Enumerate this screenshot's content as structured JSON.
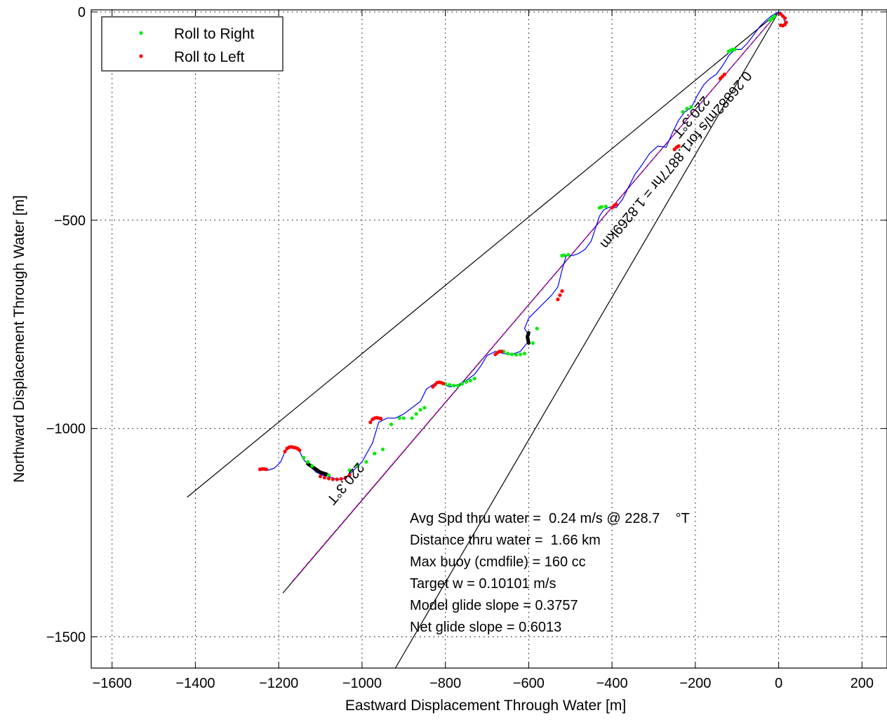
{
  "chart_data": {
    "type": "line",
    "xlabel": "Eastward Displacement Through Water [m]",
    "ylabel": "Northward Displacement Through Water [m]",
    "xlim": [
      -1650,
      260
    ],
    "ylim": [
      -1575,
      5
    ],
    "xticks": [
      -1600,
      -1400,
      -1200,
      -1000,
      -800,
      -600,
      -400,
      -200,
      0,
      200
    ],
    "xtick_labels": [
      "−1600",
      "−1400",
      "−1200",
      "−1000",
      "−800",
      "−600",
      "−400",
      "−200",
      "0",
      "200"
    ],
    "yticks": [
      0,
      -500,
      -1000,
      -1500
    ],
    "ytick_labels": [
      "0",
      "−500",
      "−1000",
      "−1500"
    ],
    "grid": true,
    "legend_placement": "top-left",
    "colors": {
      "track": "#0000ff",
      "roll_right": "#00ee00",
      "roll_left": "#ff0000",
      "reference_line": "#000000",
      "heading_line": "#cc00cc",
      "stall_segment": "#000000"
    },
    "series": [
      {
        "name": "Roll to Right",
        "marker_color": "#00ee00"
      },
      {
        "name": "Roll to Left",
        "marker_color": "#ff0000"
      }
    ],
    "track": {
      "x": [
        -1240,
        -1225,
        -1210,
        -1195,
        -1185,
        -1175,
        -1160,
        -1150,
        -1140,
        -1125,
        -1110,
        -1095,
        -1080,
        -1060,
        -1040,
        -1020,
        -1000,
        -975,
        -960,
        -940,
        -920,
        -900,
        -880,
        -860,
        -845,
        -830,
        -810,
        -790,
        -770,
        -750,
        -730,
        -715,
        -700,
        -680,
        -660,
        -640,
        -620,
        -600,
        -600,
        -610,
        -600,
        -585,
        -565,
        -545,
        -530,
        -520,
        -510,
        -495,
        -480,
        -465,
        -450,
        -440,
        -430,
        -420,
        -405,
        -390,
        -375,
        -360,
        -345,
        -330,
        -310,
        -290,
        -270,
        -255,
        -240,
        -225,
        -210,
        -195,
        -180,
        -165,
        -150,
        -135,
        -120,
        -105,
        -90,
        -75,
        -60,
        -45,
        -30,
        -15,
        0,
        10,
        15,
        10,
        5
      ],
      "y": [
        -1098,
        -1100,
        -1095,
        -1080,
        -1055,
        -1045,
        -1045,
        -1055,
        -1075,
        -1090,
        -1105,
        -1112,
        -1115,
        -1122,
        -1120,
        -1100,
        -1080,
        -1035,
        -985,
        -975,
        -975,
        -965,
        -950,
        -935,
        -905,
        -895,
        -890,
        -900,
        -895,
        -885,
        -870,
        -850,
        -825,
        -815,
        -820,
        -822,
        -815,
        -790,
        -775,
        -760,
        -735,
        -720,
        -700,
        -680,
        -660,
        -620,
        -585,
        -585,
        -580,
        -570,
        -550,
        -520,
        -490,
        -475,
        -468,
        -470,
        -450,
        -420,
        -390,
        -370,
        -340,
        -322,
        -325,
        -290,
        -260,
        -240,
        -230,
        -200,
        -175,
        -160,
        -150,
        -130,
        -105,
        -90,
        -90,
        -75,
        -55,
        -35,
        -20,
        -8,
        0,
        -10,
        -25,
        -35,
        -30
      ]
    },
    "stall_segments": [
      {
        "x": [
          -1130,
          -1115,
          -1100,
          -1085
        ],
        "y": [
          -1085,
          -1095,
          -1105,
          -1110
        ]
      },
      {
        "x": [
          -600,
          -603,
          -600
        ],
        "y": [
          -795,
          -780,
          -770
        ]
      }
    ],
    "roll_right_points": {
      "x": [
        -1140,
        -1130,
        -1120,
        -1080,
        -1030,
        -1010,
        -990,
        -970,
        -950,
        -930,
        -910,
        -900,
        -880,
        -870,
        -860,
        -850,
        -800,
        -790,
        -780,
        -770,
        -760,
        -750,
        -740,
        -730,
        -660,
        -650,
        -640,
        -630,
        -620,
        -610,
        -590,
        -580,
        -520,
        -515,
        -505,
        -430,
        -425,
        -415,
        -230,
        -220,
        -210,
        -120,
        -115,
        -110,
        -105,
        -20,
        -15,
        -10
      ],
      "y": [
        -1070,
        -1080,
        -1090,
        -1112,
        -1100,
        -1090,
        -1080,
        -1060,
        -1050,
        -990,
        -975,
        -975,
        -975,
        -965,
        -955,
        -950,
        -893,
        -895,
        -897,
        -897,
        -893,
        -888,
        -885,
        -880,
        -815,
        -820,
        -822,
        -823,
        -822,
        -820,
        -795,
        -760,
        -585,
        -584,
        -583,
        -470,
        -468,
        -467,
        -240,
        -232,
        -228,
        -95,
        -92,
        -90,
        -90,
        -20,
        -15,
        -10
      ]
    },
    "roll_left_points": {
      "x": [
        -1245,
        -1240,
        -1235,
        -1230,
        -1185,
        -1180,
        -1175,
        -1170,
        -1165,
        -1160,
        -1155,
        -1150,
        -1100,
        -1090,
        -1080,
        -1070,
        -1060,
        -1050,
        -1040,
        -1030,
        -980,
        -975,
        -970,
        -965,
        -960,
        -955,
        -830,
        -825,
        -820,
        -815,
        -810,
        -805,
        -680,
        -675,
        -670,
        -665,
        -530,
        -525,
        -520,
        -400,
        -395,
        -390,
        -250,
        -245,
        -240,
        -140,
        -135,
        -130,
        5,
        10,
        15,
        18,
        15,
        10,
        5
      ],
      "y": [
        -1098,
        -1097,
        -1097,
        -1098,
        -1055,
        -1048,
        -1045,
        -1044,
        -1045,
        -1046,
        -1048,
        -1052,
        -1115,
        -1118,
        -1120,
        -1122,
        -1122,
        -1121,
        -1118,
        -1112,
        -985,
        -978,
        -975,
        -974,
        -975,
        -976,
        -900,
        -895,
        -890,
        -889,
        -890,
        -892,
        -822,
        -818,
        -815,
        -815,
        -690,
        -680,
        -670,
        -470,
        -465,
        -462,
        -330,
        -325,
        -322,
        -160,
        -155,
        -150,
        -5,
        -10,
        -15,
        -25,
        -30,
        -33,
        -32
      ]
    },
    "reference_lines": [
      {
        "x": [
          0,
          -1420
        ],
        "y": [
          0,
          -1165
        ]
      },
      {
        "x": [
          0,
          -920
        ],
        "y": [
          0,
          -1575
        ]
      },
      {
        "x": [
          0,
          -1190
        ],
        "y": [
          0,
          -1395
        ]
      }
    ],
    "heading_line": {
      "x": [
        0,
        -1170
      ],
      "y": [
        0,
        -1370
      ]
    },
    "annotations": [
      {
        "text": "220.3°T",
        "x": -1010,
        "y": -1080,
        "rotation": 130
      },
      {
        "text": "220.3°T",
        "x": -180,
        "y": -200,
        "rotation": 130
      },
      {
        "text": "0.26882m/s for1.8877hr = 1.8269km",
        "x": -80,
        "y": -140,
        "rotation": 130
      }
    ],
    "stats": [
      "Avg Spd thru water =  0.24 m/s @ 228.7    °T",
      "Distance thru water =  1.66 km",
      "Max buoy (cmdfile) = 160 cc",
      "Target w = 0.10101 m/s",
      "Model glide slope = 0.3757",
      "Net glide slope = 0.6013"
    ]
  }
}
